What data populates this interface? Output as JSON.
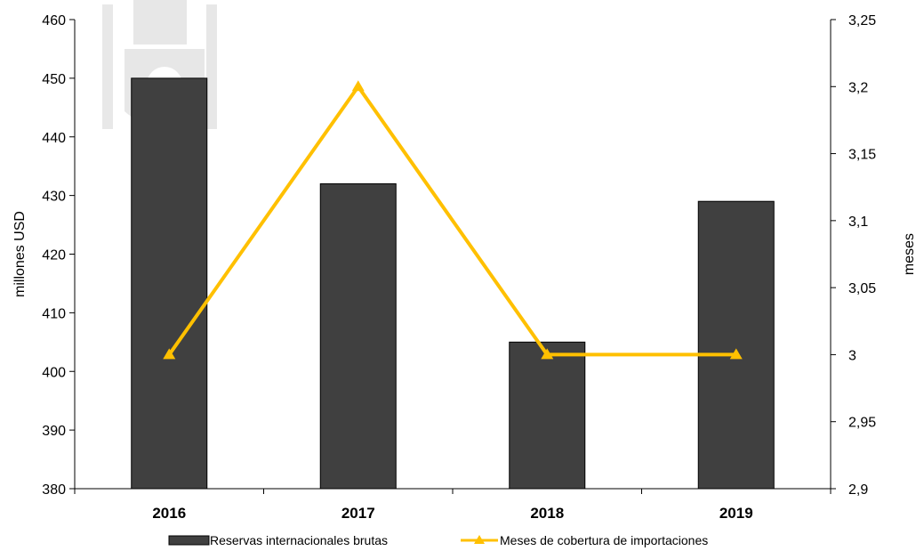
{
  "chart_data": {
    "type": "bar",
    "categories": [
      "2016",
      "2017",
      "2018",
      "2019"
    ],
    "series": [
      {
        "name": "Reservas internacionales brutas",
        "kind": "bar",
        "axis": "left",
        "color": "#404040",
        "values": [
          450,
          432,
          405,
          429
        ]
      },
      {
        "name": "Meses de cobertura de importaciones",
        "kind": "line",
        "axis": "right",
        "color": "#FFC000",
        "marker": "triangle",
        "values": [
          3.0,
          3.2,
          3.0,
          3.0
        ]
      }
    ],
    "ylabel": "millones USD",
    "ylim": [
      380,
      460
    ],
    "yticks": [
      "380",
      "390",
      "400",
      "410",
      "420",
      "430",
      "440",
      "450",
      "460"
    ],
    "y2label": "meses",
    "y2lim": [
      2.9,
      3.25
    ],
    "y2ticks": [
      "2,9",
      "2,95",
      "3",
      "3,05",
      "3,1",
      "3,15",
      "3,2",
      "3,25"
    ],
    "legend_position": "bottom",
    "grid": false
  }
}
